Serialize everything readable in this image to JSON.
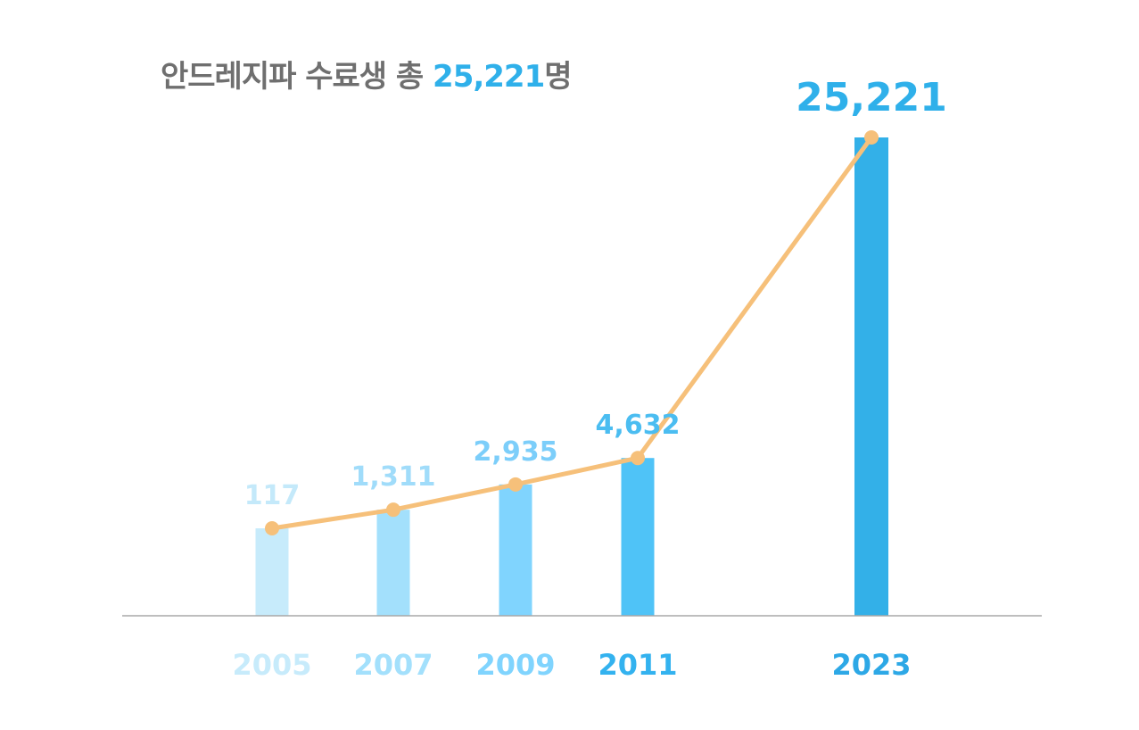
{
  "title": {
    "prefix": "안드레지파 수료생 총 ",
    "highlight": "25,221",
    "suffix": "명"
  },
  "colors": {
    "line": "#f6c07a",
    "axis": "#a8a8a8",
    "bars": [
      "#c7ebfb",
      "#a3e0fc",
      "#80d4fe",
      "#4fc3f7",
      "#33b0e8"
    ],
    "ticks": [
      "#c7ebfb",
      "#a3e0fc",
      "#80d4fe",
      "#33b2ef",
      "#2da8e6"
    ],
    "labels": [
      "#c4e9fa",
      "#a0dcfa",
      "#7ccefa",
      "#4bbdf1",
      "#2fb0ea"
    ]
  },
  "chart_data": {
    "type": "bar",
    "categories": [
      "2005",
      "2007",
      "2009",
      "2011",
      "2023"
    ],
    "values": [
      117,
      1311,
      2935,
      4632,
      25221
    ],
    "data_labels": [
      "117",
      "1,311",
      "2,935",
      "4,632",
      "25,221"
    ],
    "overlay_line": true,
    "ylim": [
      -5500,
      25221
    ],
    "grid": false,
    "legend": "none"
  }
}
